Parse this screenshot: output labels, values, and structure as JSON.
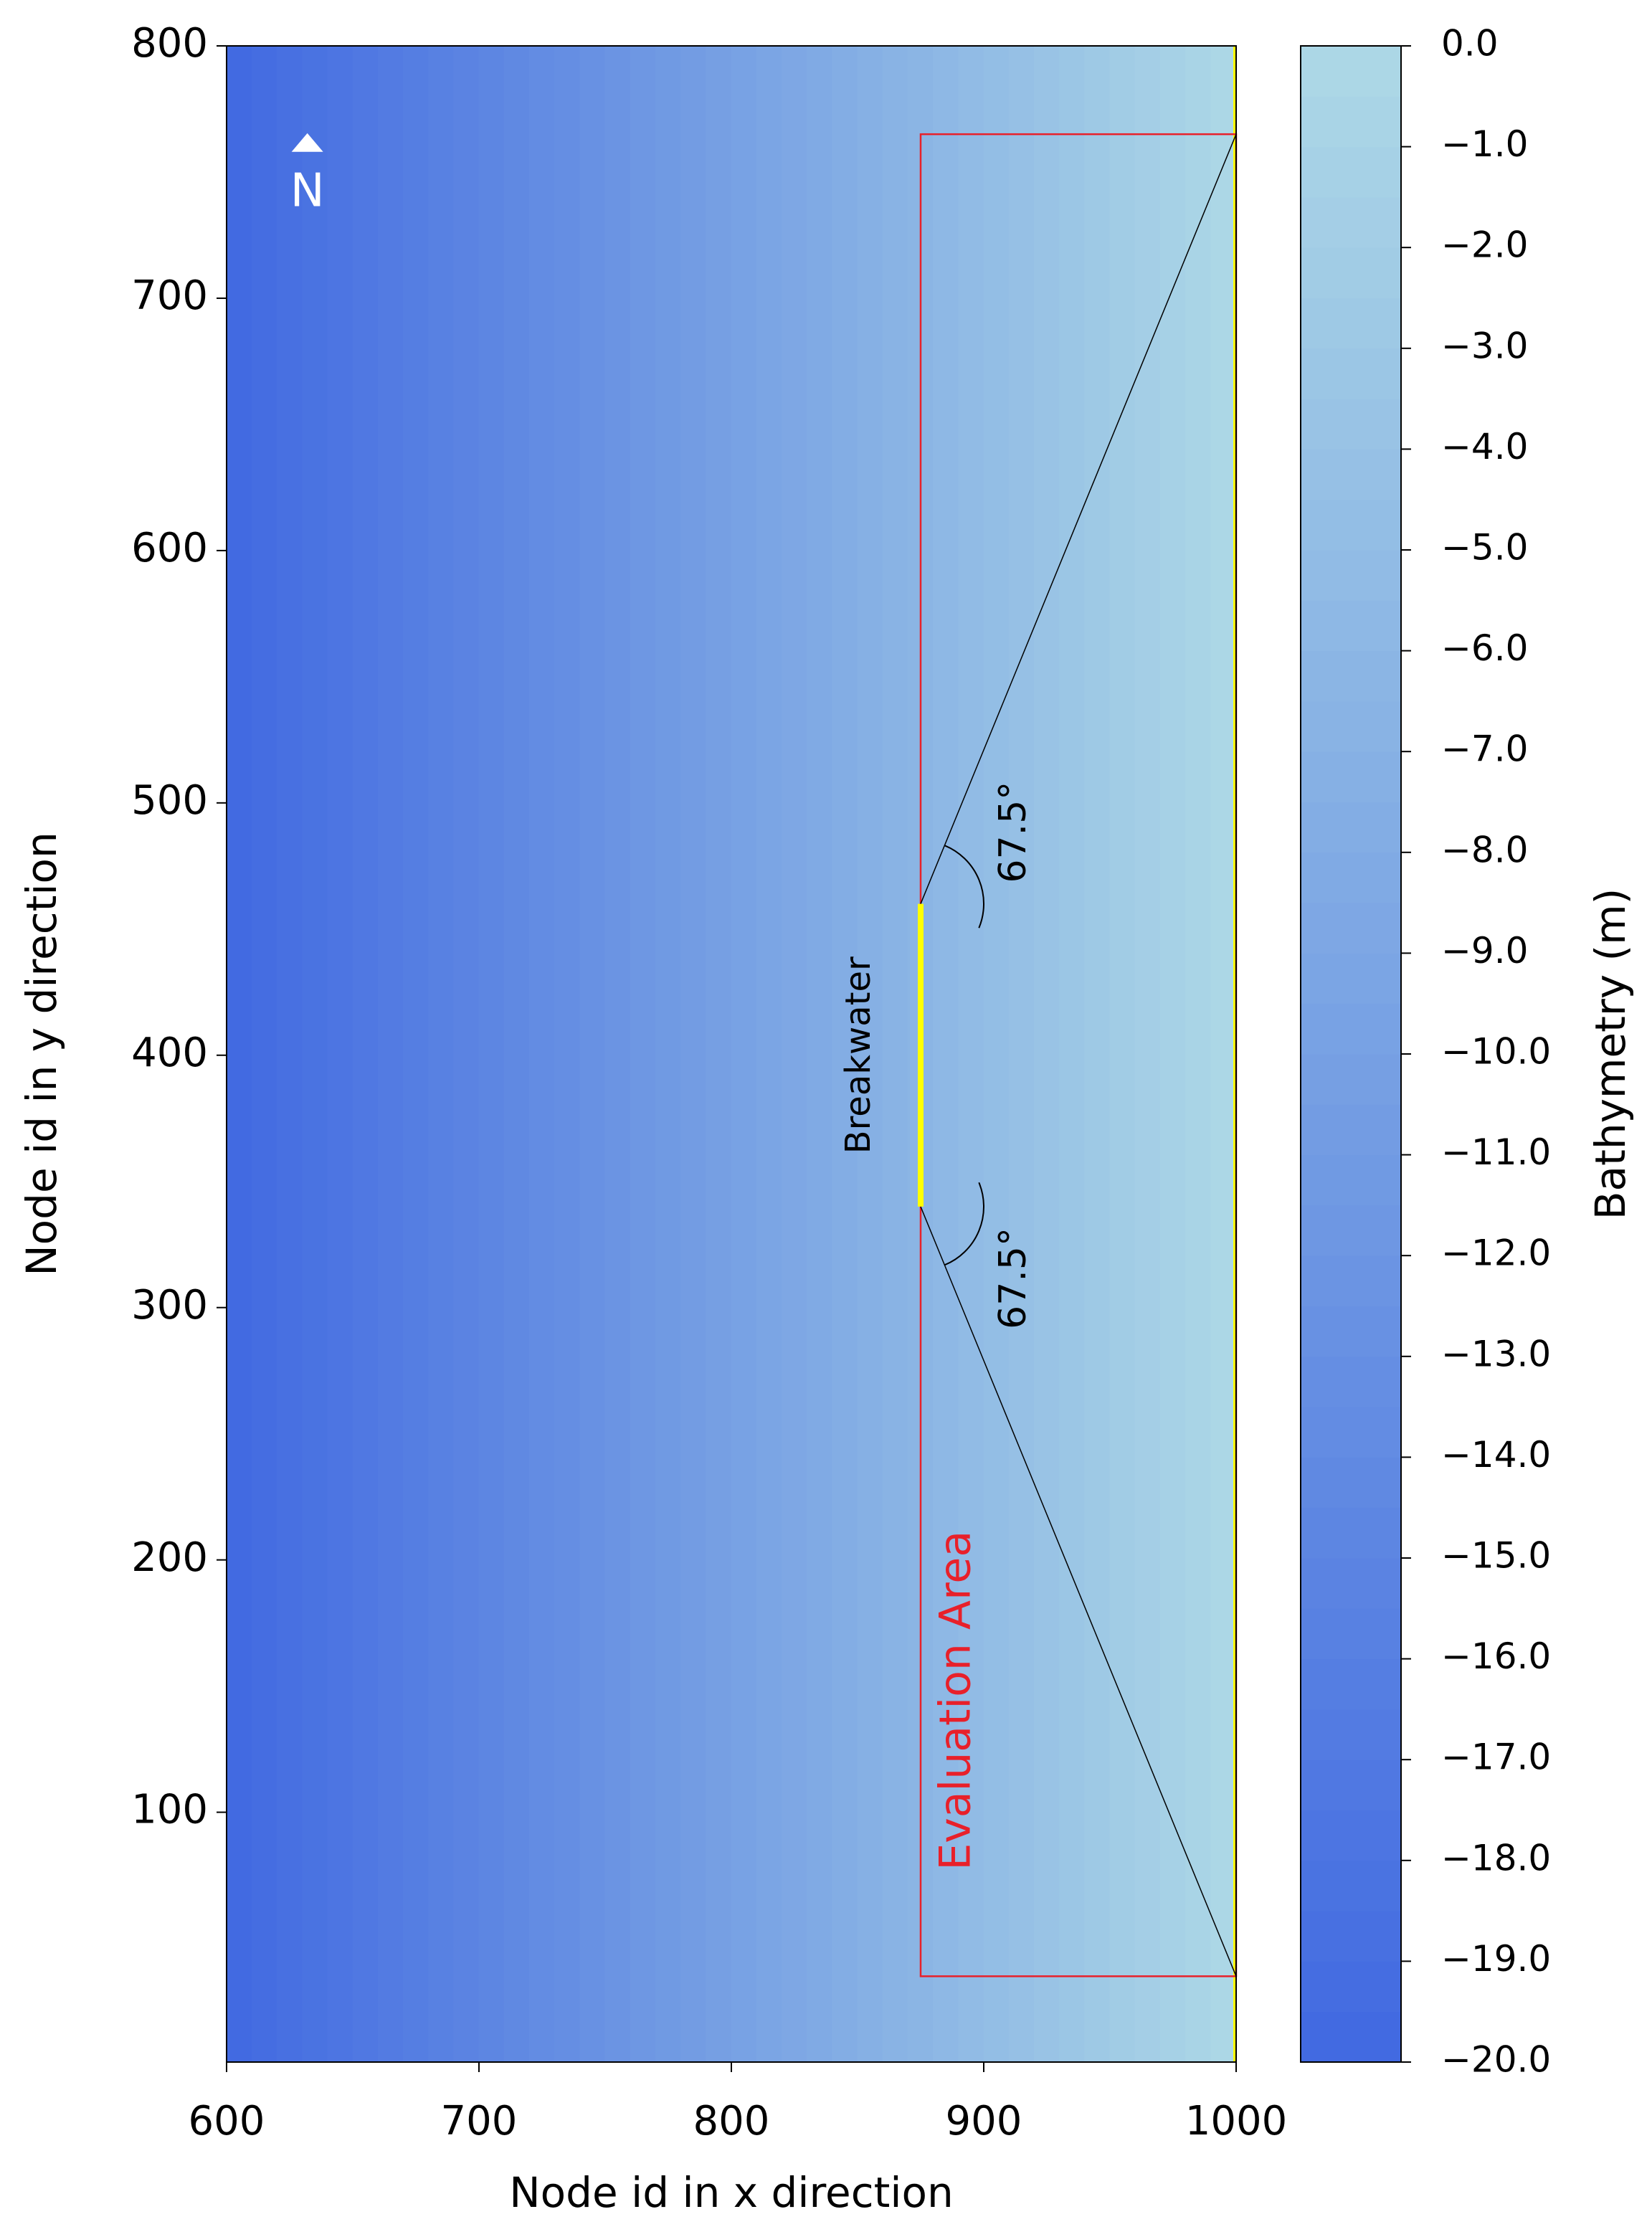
{
  "chart_data": {
    "type": "heatmap",
    "xlabel": "Node id in x direction",
    "ylabel": "Node id in y direction",
    "xlim": [
      600,
      1000
    ],
    "ylim": [
      1,
      800
    ],
    "xticks": [
      600,
      700,
      800,
      900,
      1000
    ],
    "yticks": [
      100,
      200,
      300,
      400,
      500,
      600,
      700,
      800
    ],
    "field": {
      "x": [
        600,
        1000
      ],
      "values": [
        -20,
        0
      ],
      "levels": 40
    },
    "colorbar": {
      "label": "Bathymetry (m)",
      "lim": [
        -20,
        0
      ],
      "colors": [
        "#4169e1",
        "#add8e6"
      ],
      "ticks": [
        {
          "value": 0,
          "label": "0.0"
        },
        {
          "value": -1,
          "label": "−1.0"
        },
        {
          "value": -2,
          "label": "−2.0"
        },
        {
          "value": -3,
          "label": "−3.0"
        },
        {
          "value": -4,
          "label": "−4.0"
        },
        {
          "value": -5,
          "label": "−5.0"
        },
        {
          "value": -6,
          "label": "−6.0"
        },
        {
          "value": -7,
          "label": "−7.0"
        },
        {
          "value": -8,
          "label": "−8.0"
        },
        {
          "value": -9,
          "label": "−9.0"
        },
        {
          "value": -10,
          "label": "−10.0"
        },
        {
          "value": -11,
          "label": "−11.0"
        },
        {
          "value": -12,
          "label": "−12.0"
        },
        {
          "value": -13,
          "label": "−13.0"
        },
        {
          "value": -14,
          "label": "−14.0"
        },
        {
          "value": -15,
          "label": "−15.0"
        },
        {
          "value": -16,
          "label": "−16.0"
        },
        {
          "value": -17,
          "label": "−17.0"
        },
        {
          "value": -18,
          "label": "−18.0"
        },
        {
          "value": -19,
          "label": "−19.0"
        },
        {
          "value": -20,
          "label": "−20.0"
        }
      ]
    },
    "shoreline": {
      "x": [
        1000,
        1000
      ],
      "y": [
        1,
        800
      ],
      "color": "#ffff00"
    },
    "breakwater": {
      "label": "Breakwater",
      "x": [
        875,
        875
      ],
      "y": [
        340,
        460
      ],
      "color": "#ffff00"
    },
    "evaluation_area": {
      "label": "Evaluation Area",
      "x": [
        875,
        1000
      ],
      "y": [
        35,
        765
      ],
      "color": "#e8202a"
    },
    "rays": [
      {
        "x": [
          875,
          1000
        ],
        "y": [
          460,
          765
        ]
      },
      {
        "x": [
          875,
          1000
        ],
        "y": [
          340,
          35
        ]
      }
    ],
    "angles": [
      {
        "value": 67.5,
        "label": "67.5°",
        "x": 875,
        "y": 460,
        "direction": "up"
      },
      {
        "value": 67.5,
        "label": "67.5°",
        "x": 875,
        "y": 340,
        "direction": "down"
      }
    ],
    "north": {
      "label": "N",
      "x": 632,
      "y": 762
    }
  }
}
